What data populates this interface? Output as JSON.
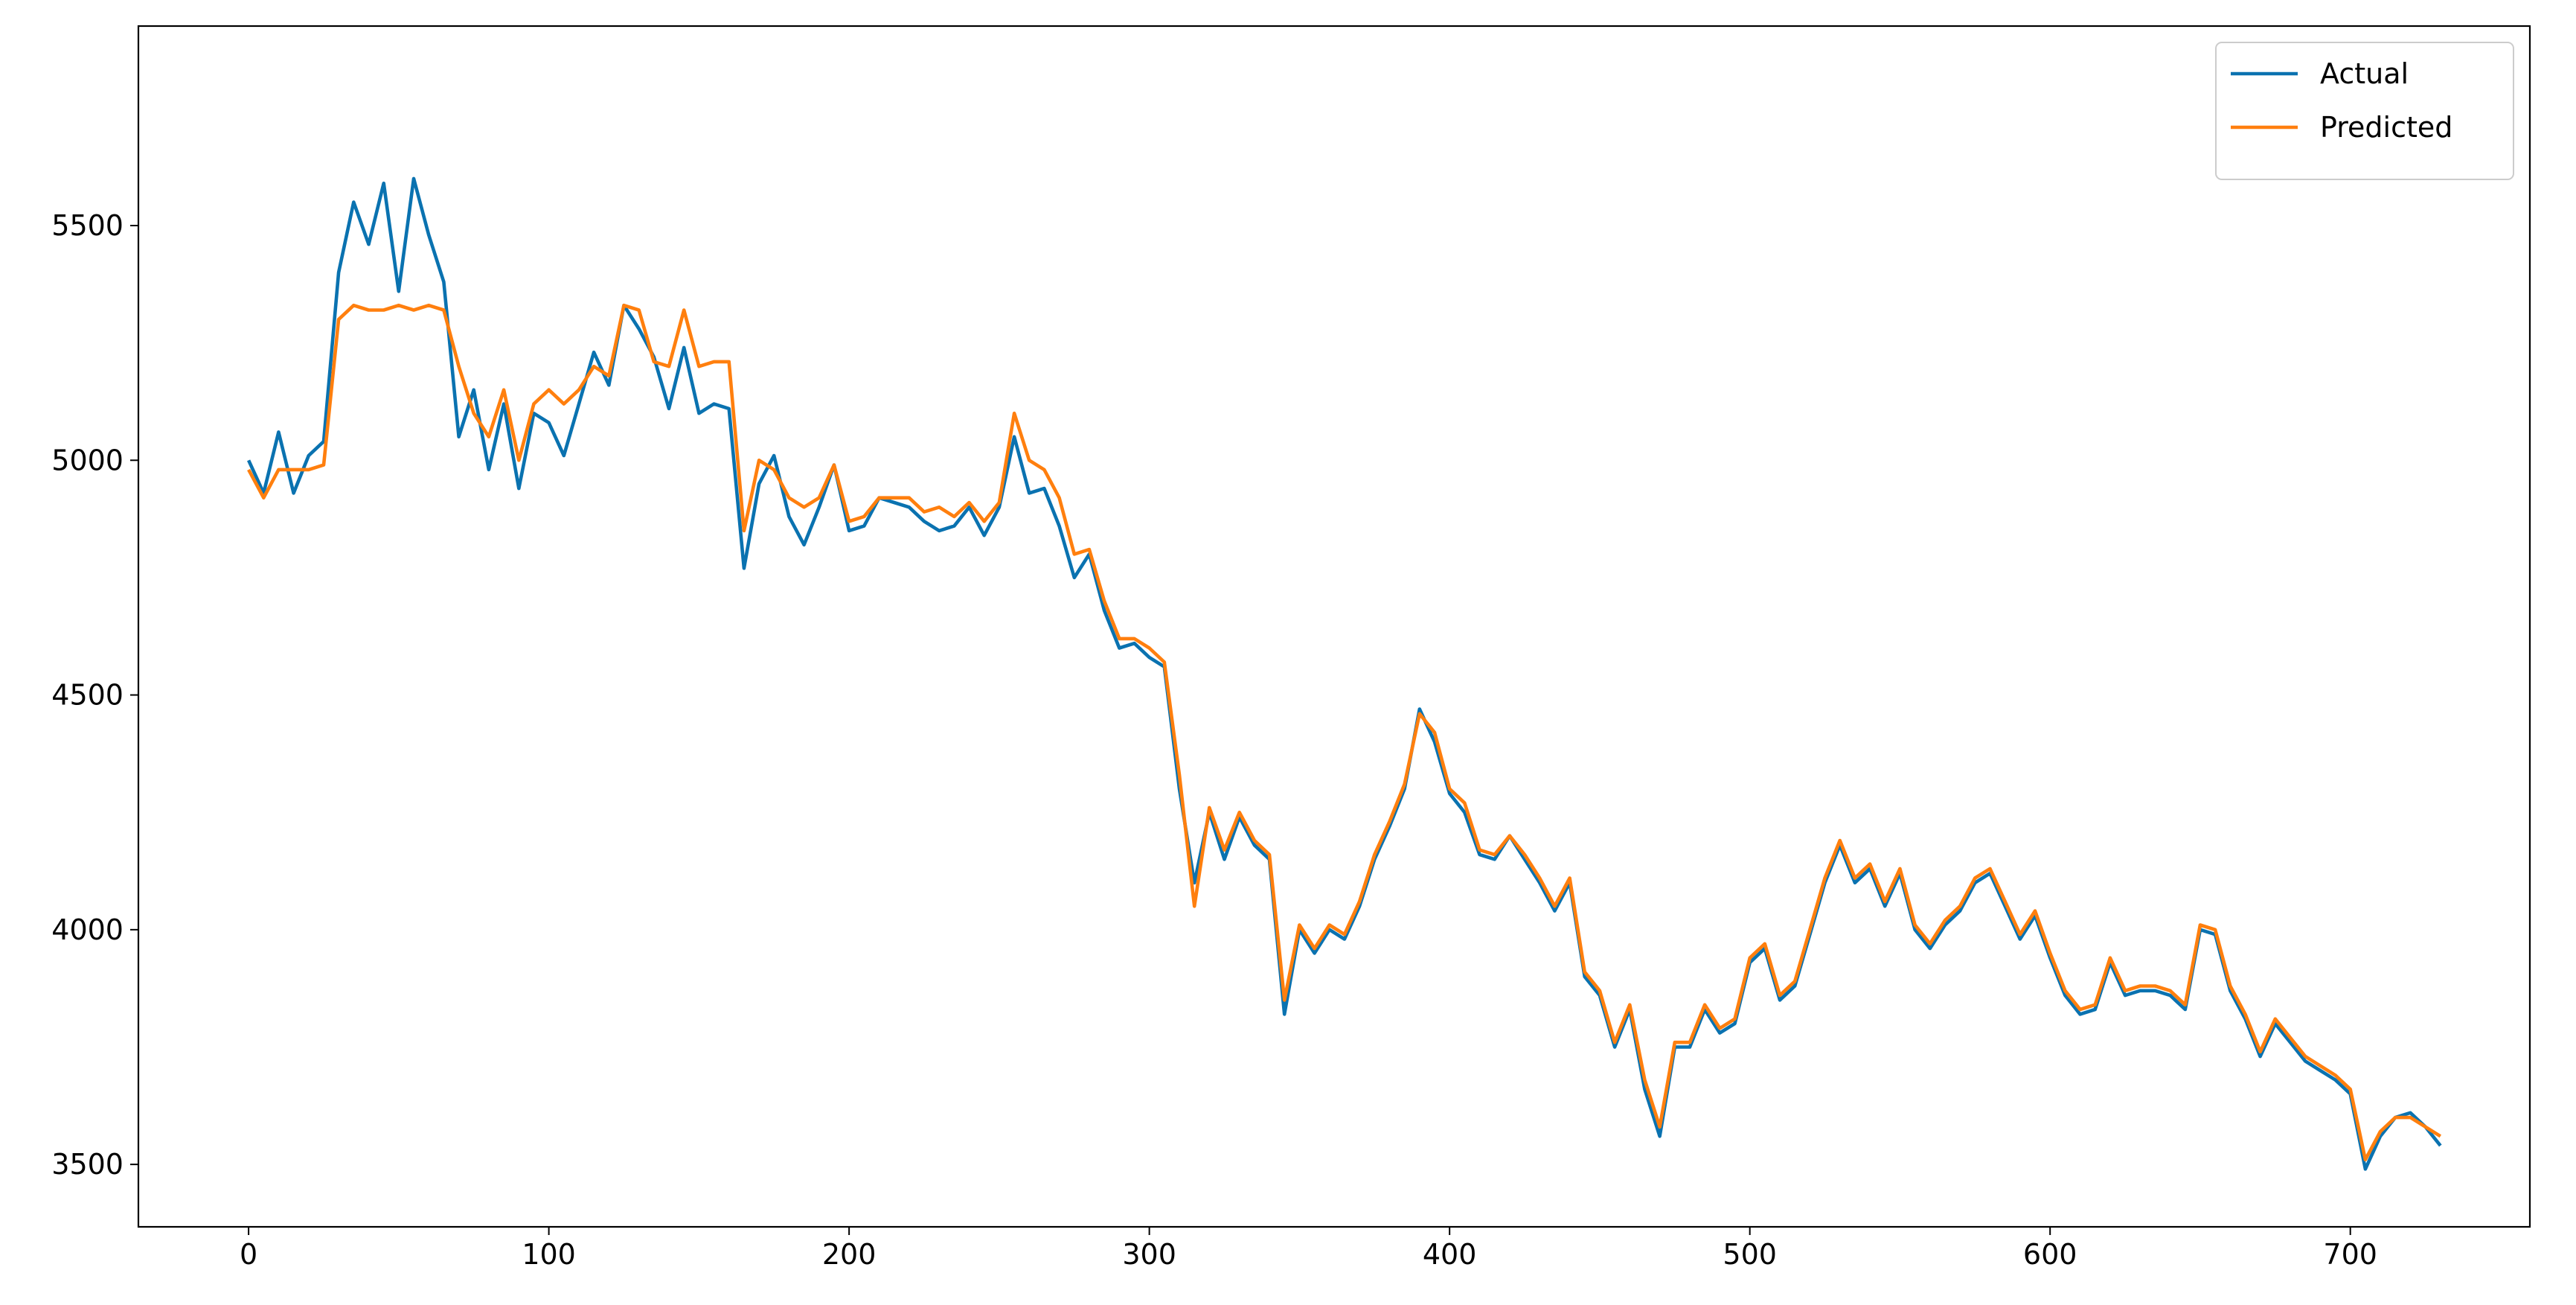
{
  "chart_data": {
    "type": "line",
    "x": [
      0,
      5,
      10,
      15,
      20,
      25,
      30,
      35,
      40,
      45,
      50,
      55,
      60,
      65,
      70,
      75,
      80,
      85,
      90,
      95,
      100,
      105,
      110,
      115,
      120,
      125,
      130,
      135,
      140,
      145,
      150,
      155,
      160,
      165,
      170,
      175,
      180,
      185,
      190,
      195,
      200,
      205,
      210,
      215,
      220,
      225,
      230,
      235,
      240,
      245,
      250,
      255,
      260,
      265,
      270,
      275,
      280,
      285,
      290,
      295,
      300,
      305,
      310,
      315,
      320,
      325,
      330,
      335,
      340,
      345,
      350,
      355,
      360,
      365,
      370,
      375,
      380,
      385,
      390,
      395,
      400,
      405,
      410,
      415,
      420,
      425,
      430,
      435,
      440,
      445,
      450,
      455,
      460,
      465,
      470,
      475,
      480,
      485,
      490,
      495,
      500,
      505,
      510,
      515,
      520,
      525,
      530,
      535,
      540,
      545,
      550,
      555,
      560,
      565,
      570,
      575,
      580,
      585,
      590,
      595,
      600,
      605,
      610,
      615,
      620,
      625,
      630,
      635,
      640,
      645,
      650,
      655,
      660,
      665,
      670,
      675,
      680,
      685,
      690,
      695,
      700,
      705,
      710,
      715,
      720,
      725,
      730
    ],
    "series": [
      {
        "name": "Actual",
        "color": "#0a72b0",
        "values": [
          5000,
          4930,
          5060,
          4930,
          5010,
          5040,
          5400,
          5550,
          5460,
          5590,
          5360,
          5600,
          5480,
          5380,
          5050,
          5150,
          4980,
          5120,
          4940,
          5100,
          5080,
          5010,
          5120,
          5230,
          5160,
          5330,
          5280,
          5220,
          5110,
          5240,
          5100,
          5120,
          5110,
          4770,
          4950,
          5010,
          4880,
          4820,
          4900,
          4990,
          4850,
          4860,
          4920,
          4910,
          4900,
          4870,
          4850,
          4860,
          4900,
          4840,
          4900,
          5050,
          4930,
          4940,
          4860,
          4750,
          4800,
          4680,
          4600,
          4610,
          4580,
          4560,
          4300,
          4100,
          4250,
          4150,
          4240,
          4180,
          4150,
          3820,
          4000,
          3950,
          4000,
          3980,
          4050,
          4150,
          4220,
          4300,
          4470,
          4400,
          4290,
          4250,
          4160,
          4150,
          4200,
          4150,
          4100,
          4040,
          4100,
          3900,
          3860,
          3750,
          3830,
          3660,
          3560,
          3750,
          3750,
          3830,
          3780,
          3800,
          3930,
          3960,
          3850,
          3880,
          3990,
          4100,
          4180,
          4100,
          4130,
          4050,
          4120,
          4000,
          3960,
          4010,
          4040,
          4100,
          4120,
          4050,
          3980,
          4030,
          3940,
          3860,
          3820,
          3830,
          3930,
          3860,
          3870,
          3870,
          3860,
          3830,
          4000,
          3990,
          3870,
          3810,
          3730,
          3800,
          3760,
          3720,
          3700,
          3680,
          3650,
          3490,
          3560,
          3600,
          3610,
          3580,
          3540
        ]
      },
      {
        "name": "Predicted",
        "color": "#ff7f0e",
        "values": [
          4980,
          4920,
          4980,
          4980,
          4980,
          4990,
          5300,
          5330,
          5320,
          5320,
          5330,
          5320,
          5330,
          5320,
          5200,
          5100,
          5050,
          5150,
          5000,
          5120,
          5150,
          5120,
          5150,
          5200,
          5180,
          5330,
          5320,
          5210,
          5200,
          5320,
          5200,
          5210,
          5210,
          4850,
          5000,
          4980,
          4920,
          4900,
          4920,
          4990,
          4870,
          4880,
          4920,
          4920,
          4920,
          4890,
          4900,
          4880,
          4910,
          4870,
          4910,
          5100,
          5000,
          4980,
          4920,
          4800,
          4810,
          4700,
          4620,
          4620,
          4600,
          4570,
          4330,
          4050,
          4260,
          4170,
          4250,
          4190,
          4160,
          3850,
          4010,
          3960,
          4010,
          3990,
          4060,
          4160,
          4230,
          4310,
          4460,
          4420,
          4300,
          4270,
          4170,
          4160,
          4200,
          4160,
          4110,
          4050,
          4110,
          3910,
          3870,
          3760,
          3840,
          3680,
          3580,
          3760,
          3760,
          3840,
          3790,
          3810,
          3940,
          3970,
          3860,
          3890,
          4000,
          4110,
          4190,
          4110,
          4140,
          4060,
          4130,
          4010,
          3970,
          4020,
          4050,
          4110,
          4130,
          4060,
          3990,
          4040,
          3950,
          3870,
          3830,
          3840,
          3940,
          3870,
          3880,
          3880,
          3870,
          3840,
          4010,
          4000,
          3880,
          3820,
          3740,
          3810,
          3770,
          3730,
          3710,
          3690,
          3660,
          3510,
          3570,
          3600,
          3600,
          3580,
          3560
        ]
      }
    ],
    "xlim": [
      -36.7,
      759.8
    ],
    "ylim": [
      3367,
      5925
    ],
    "xticks": [
      0,
      100,
      200,
      300,
      400,
      500,
      600,
      700
    ],
    "yticks": [
      3500,
      4000,
      4500,
      5000,
      5500
    ],
    "legend": "upper right"
  }
}
